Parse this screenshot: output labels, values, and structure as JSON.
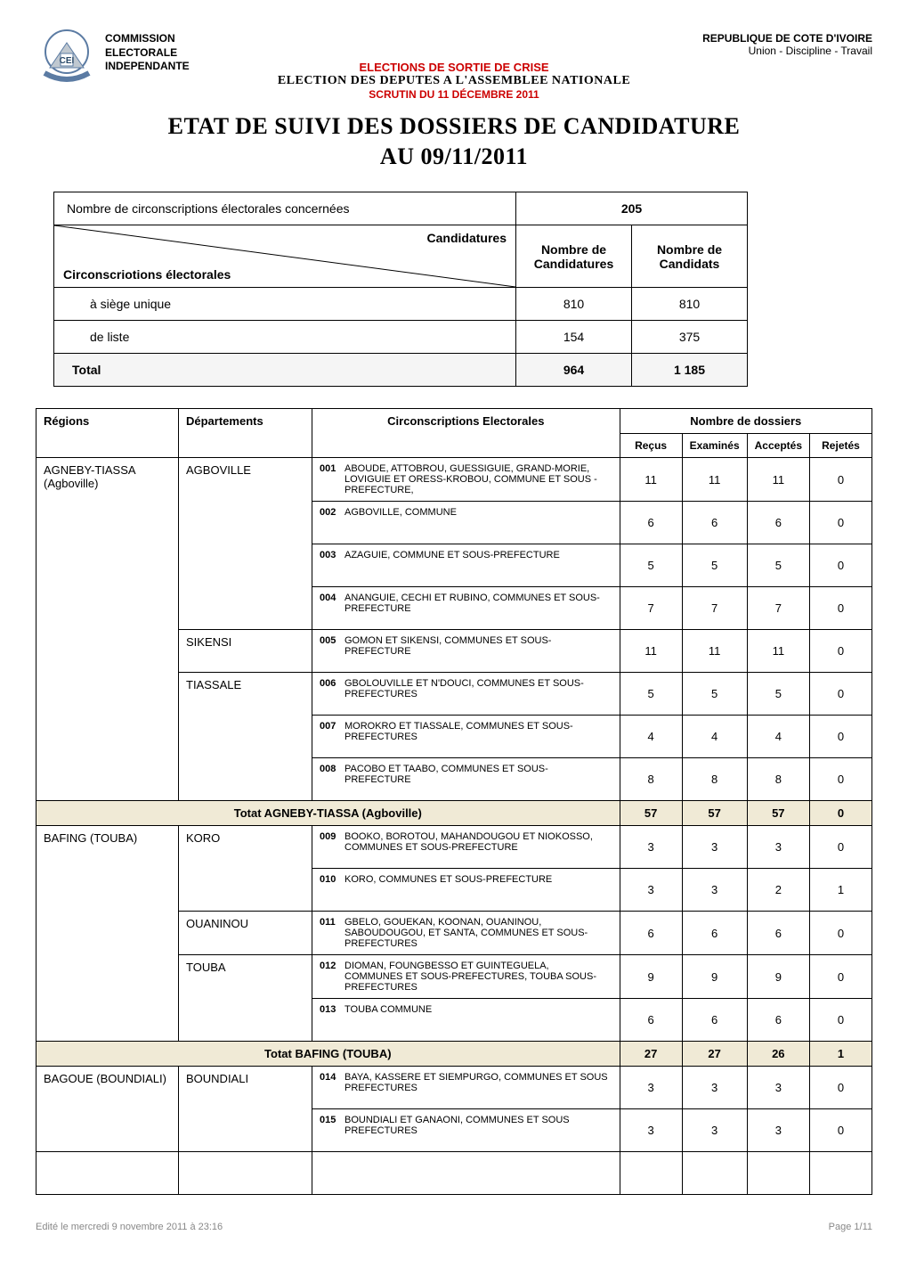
{
  "header": {
    "commission_line1": "COMMISSION",
    "commission_line2": "ELECTORALE",
    "commission_line3": "INDEPENDANTE",
    "country": "REPUBLIQUE DE COTE D'IVOIRE",
    "motto": "Union - Discipline - Travail",
    "line1": "ELECTIONS DE SORTIE DE CRISE",
    "line2": "ELECTION DES DEPUTES A L'ASSEMBLEE NATIONALE",
    "line3": "SCRUTIN DU 11 DÉCEMBRE 2011",
    "title": "ETAT DE SUIVI DES DOSSIERS DE CANDIDATURE",
    "subtitle": "AU 09/11/2011"
  },
  "summary": {
    "circ_count_label": "Nombre de circonscriptions électorales concernées",
    "circ_count_value": "205",
    "diag_top": "Candidatures",
    "diag_bottom": "Circonscriotions électorales",
    "col_candidatures": "Nombre de Candidatures",
    "col_candidats": "Nombre de Candidats",
    "rows": [
      {
        "label": "à siège unique",
        "candidatures": "810",
        "candidats": "810"
      },
      {
        "label": "de liste",
        "candidatures": "154",
        "candidats": "375"
      }
    ],
    "total_label": "Total",
    "total_candidatures": "964",
    "total_candidats": "1 185"
  },
  "columns": {
    "regions": "Régions",
    "departements": "Départements",
    "circonscriptions": "Circonscriptions Electorales",
    "dossiers_group": "Nombre de dossiers",
    "recus": "Reçus",
    "examines": "Examinés",
    "acceptes": "Acceptés",
    "rejetes": "Rejetés"
  },
  "regions": [
    {
      "name": "AGNEBY-TIASSA (Agboville)",
      "subtotal_label": "Totat  AGNEBY-TIASSA (Agboville)",
      "subtotal": {
        "recus": "57",
        "examines": "57",
        "acceptes": "57",
        "rejetes": "0"
      },
      "departements": [
        {
          "name": "AGBOVILLE",
          "circs": [
            {
              "code": "001",
              "name": "ABOUDE, ATTOBROU, GUESSIGUIE, GRAND-MORIE, LOVIGUIE ET ORESS-KROBOU, COMMUNE ET SOUS -PREFECTURE,",
              "recus": "11",
              "examines": "11",
              "acceptes": "11",
              "rejetes": "0"
            },
            {
              "code": "002",
              "name": "AGBOVILLE, COMMUNE",
              "recus": "6",
              "examines": "6",
              "acceptes": "6",
              "rejetes": "0"
            },
            {
              "code": "003",
              "name": "AZAGUIE, COMMUNE ET SOUS-PREFECTURE",
              "recus": "5",
              "examines": "5",
              "acceptes": "5",
              "rejetes": "0"
            },
            {
              "code": "004",
              "name": "ANANGUIE, CECHI ET RUBINO, COMMUNES ET SOUS-PREFECTURE",
              "recus": "7",
              "examines": "7",
              "acceptes": "7",
              "rejetes": "0"
            }
          ]
        },
        {
          "name": "SIKENSI",
          "circs": [
            {
              "code": "005",
              "name": "GOMON ET SIKENSI, COMMUNES ET SOUS-PREFECTURE",
              "recus": "11",
              "examines": "11",
              "acceptes": "11",
              "rejetes": "0"
            }
          ]
        },
        {
          "name": "TIASSALE",
          "circs": [
            {
              "code": "006",
              "name": "GBOLOUVILLE ET N'DOUCI, COMMUNES ET SOUS-PREFECTURES",
              "recus": "5",
              "examines": "5",
              "acceptes": "5",
              "rejetes": "0"
            },
            {
              "code": "007",
              "name": "MOROKRO ET TIASSALE, COMMUNES ET SOUS-PREFECTURES",
              "recus": "4",
              "examines": "4",
              "acceptes": "4",
              "rejetes": "0"
            },
            {
              "code": "008",
              "name": "PACOBO ET TAABO, COMMUNES ET SOUS-PREFECTURE",
              "recus": "8",
              "examines": "8",
              "acceptes": "8",
              "rejetes": "0"
            }
          ]
        }
      ]
    },
    {
      "name": "BAFING (TOUBA)",
      "subtotal_label": "Totat  BAFING (TOUBA)",
      "subtotal": {
        "recus": "27",
        "examines": "27",
        "acceptes": "26",
        "rejetes": "1"
      },
      "departements": [
        {
          "name": "KORO",
          "circs": [
            {
              "code": "009",
              "name": "BOOKO, BOROTOU, MAHANDOUGOU ET NIOKOSSO, COMMUNES ET SOUS-PREFECTURE",
              "recus": "3",
              "examines": "3",
              "acceptes": "3",
              "rejetes": "0"
            },
            {
              "code": "010",
              "name": "KORO, COMMUNES ET SOUS-PREFECTURE",
              "recus": "3",
              "examines": "3",
              "acceptes": "2",
              "rejetes": "1"
            }
          ]
        },
        {
          "name": "OUANINOU",
          "circs": [
            {
              "code": "011",
              "name": "GBELO, GOUEKAN, KOONAN, OUANINOU, SABOUDOUGOU, ET SANTA, COMMUNES ET SOUS-PREFECTURES",
              "recus": "6",
              "examines": "6",
              "acceptes": "6",
              "rejetes": "0"
            }
          ]
        },
        {
          "name": "TOUBA",
          "circs": [
            {
              "code": "012",
              "name": "DIOMAN, FOUNGBESSO ET GUINTEGUELA, COMMUNES ET SOUS-PREFECTURES, TOUBA SOUS-PREFECTURES",
              "recus": "9",
              "examines": "9",
              "acceptes": "9",
              "rejetes": "0"
            },
            {
              "code": "013",
              "name": "TOUBA COMMUNE",
              "recus": "6",
              "examines": "6",
              "acceptes": "6",
              "rejetes": "0"
            }
          ]
        }
      ]
    },
    {
      "name": "BAGOUE (BOUNDIALI)",
      "subtotal_label": "",
      "subtotal": null,
      "departements": [
        {
          "name": "BOUNDIALI",
          "circs": [
            {
              "code": "014",
              "name": "BAYA, KASSERE ET SIEMPURGO, COMMUNES ET SOUS PREFECTURES",
              "recus": "3",
              "examines": "3",
              "acceptes": "3",
              "rejetes": "0"
            },
            {
              "code": "015",
              "name": "BOUNDIALI ET GANAONI, COMMUNES ET SOUS PREFECTURES",
              "recus": "3",
              "examines": "3",
              "acceptes": "3",
              "rejetes": "0"
            }
          ]
        }
      ]
    }
  ],
  "footer": {
    "edited": "Edité le mercredi 9 novembre 2011 à 23:16",
    "page": "Page 1/11"
  },
  "colors": {
    "red": "#cc0000",
    "subtotal_bg": "#f0ead6",
    "footer_grey": "#888888"
  }
}
